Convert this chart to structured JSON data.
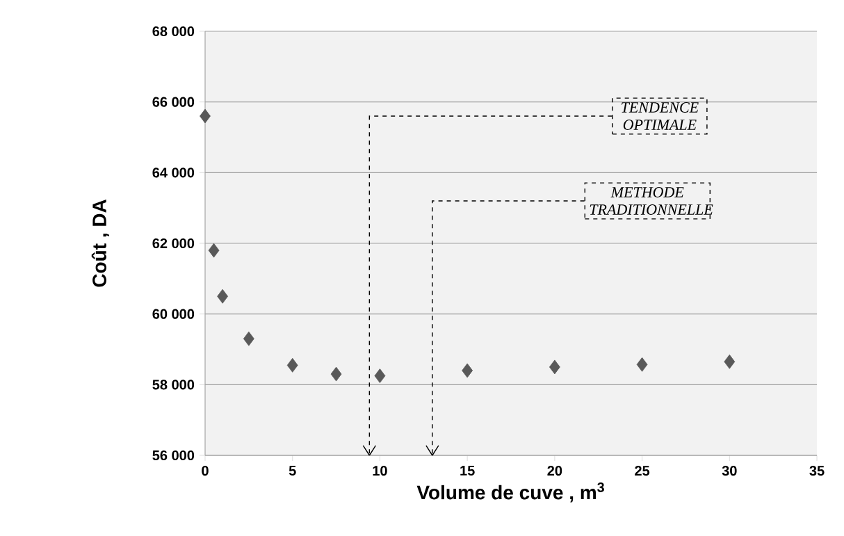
{
  "chart_data": {
    "type": "scatter",
    "xlabel": "Volume de cuve , m$^{3}$",
    "ylabel": "Coût , DA",
    "x": [
      0,
      0.5,
      1,
      2.5,
      5,
      7.5,
      10,
      15,
      20,
      25,
      30
    ],
    "values": [
      65600,
      61800,
      60500,
      59300,
      58550,
      58300,
      58250,
      58400,
      58500,
      58570,
      58650
    ],
    "color": "#595959",
    "marker": "diamond",
    "xlim": [
      0,
      35
    ],
    "xticks": [
      0,
      5,
      10,
      15,
      20,
      25,
      30,
      35
    ],
    "ylim": [
      56000,
      68000
    ],
    "yticks": [
      {
        "value": 56000,
        "label": "56 000"
      },
      {
        "value": 58000,
        "label": "58 000"
      },
      {
        "value": 60000,
        "label": "60 000"
      },
      {
        "value": 62000,
        "label": "62 000"
      },
      {
        "value": 64000,
        "label": "64 000"
      },
      {
        "value": 66000,
        "label": "66 000"
      },
      {
        "value": 68000,
        "label": "68 000"
      }
    ],
    "grid": "y",
    "ref_lines": [
      {
        "axis": "x",
        "value": 9.4,
        "label": "TENDENCE OPTIMALE",
        "line_style": "dashed"
      },
      {
        "axis": "x",
        "value": 13,
        "label": "METHODE TRADITIONNELLE",
        "line_style": "dashed"
      }
    ]
  }
}
